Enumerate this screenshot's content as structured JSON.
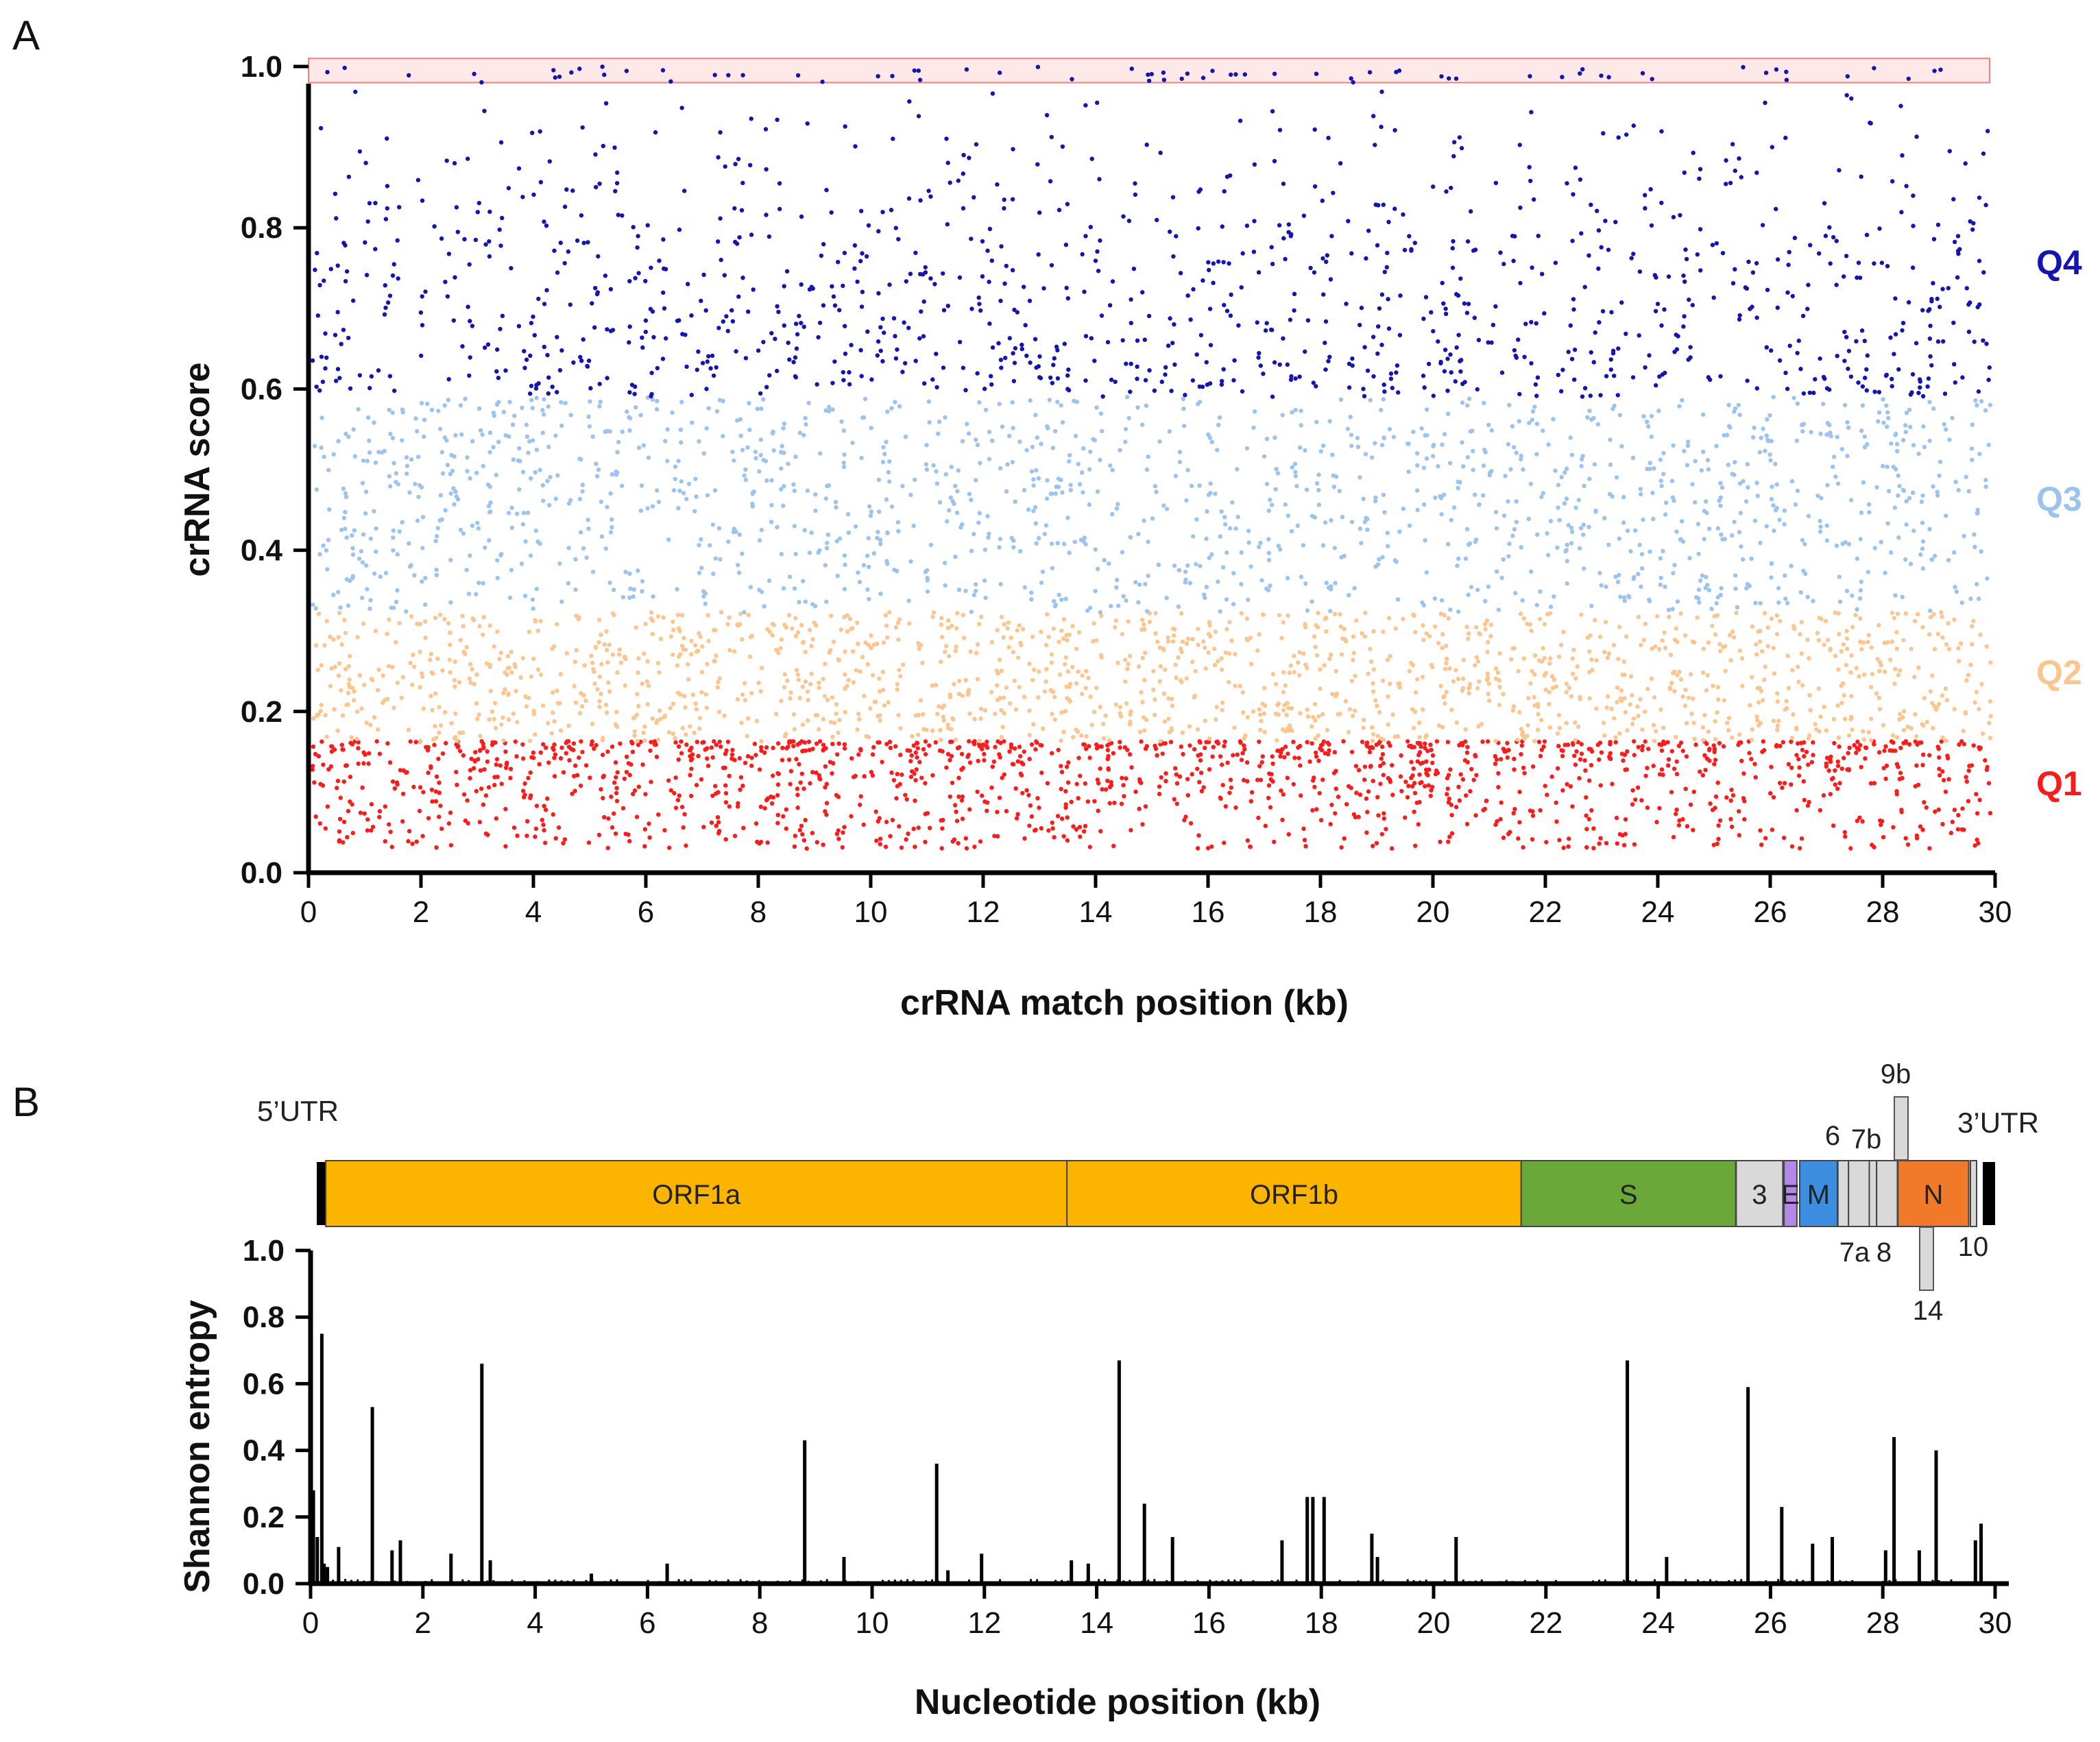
{
  "figure": {
    "panel_a_label": "A",
    "panel_b_label": "B"
  },
  "chart_data": [
    {
      "type": "scatter",
      "panel": "A",
      "title": "",
      "xlabel": "crRNA match position (kb)",
      "ylabel": "crRNA score",
      "xlim": [
        0,
        30
      ],
      "ylim": [
        0,
        1.0
      ],
      "xticks": [
        "0",
        "2",
        "4",
        "6",
        "8",
        "10",
        "12",
        "14",
        "16",
        "18",
        "20",
        "22",
        "24",
        "26",
        "28",
        "30"
      ],
      "yticks": [
        "0.0",
        "0.2",
        "0.4",
        "0.6",
        "0.8",
        "1.0"
      ],
      "grid": false,
      "highlight_band": {
        "y_range": [
          0.98,
          1.01
        ],
        "x_range": [
          0,
          30
        ],
        "color": "#ffe8e8",
        "stroke": "#f08080"
      },
      "series": [
        {
          "name": "Q1",
          "label": "Q1",
          "y_range": [
            0.03,
            0.163
          ],
          "color": "#ff1a1a",
          "density": "dense",
          "note": "individual points representative; overall distribution estimated"
        },
        {
          "name": "Q2",
          "label": "Q2",
          "y_range": [
            0.163,
            0.323
          ],
          "color": "#fcc58d",
          "density": "dense"
        },
        {
          "name": "Q3",
          "label": "Q3",
          "y_range": [
            0.323,
            0.59
          ],
          "color": "#9cc3f0",
          "density": "dense"
        },
        {
          "name": "Q4",
          "label": "Q4",
          "y_range": [
            0.59,
            1.0
          ],
          "color": "#1414b4",
          "density": "decreasing with score"
        }
      ]
    },
    {
      "type": "bar",
      "panel": "B",
      "xlabel": "Nucleotide position (kb)",
      "ylabel": "Shannon entropy",
      "xlim": [
        0,
        30
      ],
      "ylim": [
        0,
        1.0
      ],
      "xticks": [
        "0",
        "2",
        "4",
        "6",
        "8",
        "10",
        "12",
        "14",
        "16",
        "18",
        "20",
        "22",
        "24",
        "26",
        "28",
        "30"
      ],
      "yticks": [
        "0.0",
        "0.2",
        "0.4",
        "0.6",
        "0.8",
        "1.0"
      ],
      "grid": false,
      "x": [
        0.05,
        0.12,
        0.2,
        0.24,
        0.3,
        0.5,
        1.1,
        1.45,
        1.6,
        2.5,
        3.05,
        3.2,
        5.0,
        6.35,
        8.8,
        9.5,
        11.15,
        11.35,
        11.95,
        13.55,
        13.85,
        14.4,
        14.85,
        15.35,
        17.3,
        17.75,
        17.85,
        18.05,
        18.9,
        19.0,
        20.4,
        23.45,
        24.15,
        25.6,
        26.2,
        26.75,
        27.1,
        28.05,
        28.2,
        28.65,
        28.95,
        29.65,
        29.75
      ],
      "values": [
        0.28,
        0.14,
        0.75,
        0.06,
        0.05,
        0.11,
        0.53,
        0.1,
        0.13,
        0.09,
        0.66,
        0.07,
        0.03,
        0.06,
        0.43,
        0.08,
        0.36,
        0.04,
        0.09,
        0.07,
        0.06,
        0.67,
        0.24,
        0.14,
        0.13,
        0.26,
        0.26,
        0.26,
        0.15,
        0.08,
        0.14,
        0.67,
        0.08,
        0.59,
        0.23,
        0.12,
        0.14,
        0.1,
        0.44,
        0.1,
        0.4,
        0.13,
        0.18
      ],
      "genome_map": {
        "utr5_label": "5’UTR",
        "utr3_label": "3’UTR",
        "genes": [
          {
            "name": "ORF1a",
            "label": "ORF1a",
            "start": 0.27,
            "end": 13.47,
            "color": "#fbb500"
          },
          {
            "name": "ORF1b",
            "label": "ORF1b",
            "start": 13.47,
            "end": 21.56,
            "color": "#fbb500"
          },
          {
            "name": "S",
            "label": "S",
            "start": 21.56,
            "end": 25.38,
            "color": "#6aa83a"
          },
          {
            "name": "ORF3",
            "label": "3",
            "start": 25.39,
            "end": 26.22,
            "color": "#d9d9d9"
          },
          {
            "name": "E",
            "label": "E",
            "start": 26.24,
            "end": 26.47,
            "color": "#b388e8"
          },
          {
            "name": "M",
            "label": "M",
            "start": 26.52,
            "end": 27.19,
            "color": "#3d8ee0"
          },
          {
            "name": "ORF6",
            "label": "6",
            "start": 27.2,
            "end": 27.39,
            "color": "#d9d9d9"
          },
          {
            "name": "ORF7a",
            "label": "7a",
            "start": 27.39,
            "end": 27.76,
            "color": "#d9d9d9"
          },
          {
            "name": "ORF7b",
            "label": "7b",
            "start": 27.76,
            "end": 27.89,
            "color": "#d9d9d9"
          },
          {
            "name": "ORF8",
            "label": "8",
            "start": 27.89,
            "end": 28.26,
            "color": "#d9d9d9"
          },
          {
            "name": "N",
            "label": "N",
            "start": 28.27,
            "end": 29.53,
            "color": "#f07a2a"
          },
          {
            "name": "ORF10",
            "label": "10",
            "start": 29.56,
            "end": 29.67,
            "color": "#d9d9d9"
          }
        ],
        "offset_genes": [
          {
            "name": "ORF9b",
            "label": "9b",
            "position": "above"
          },
          {
            "name": "ORF14",
            "label": "14",
            "position": "below"
          }
        ]
      }
    }
  ]
}
